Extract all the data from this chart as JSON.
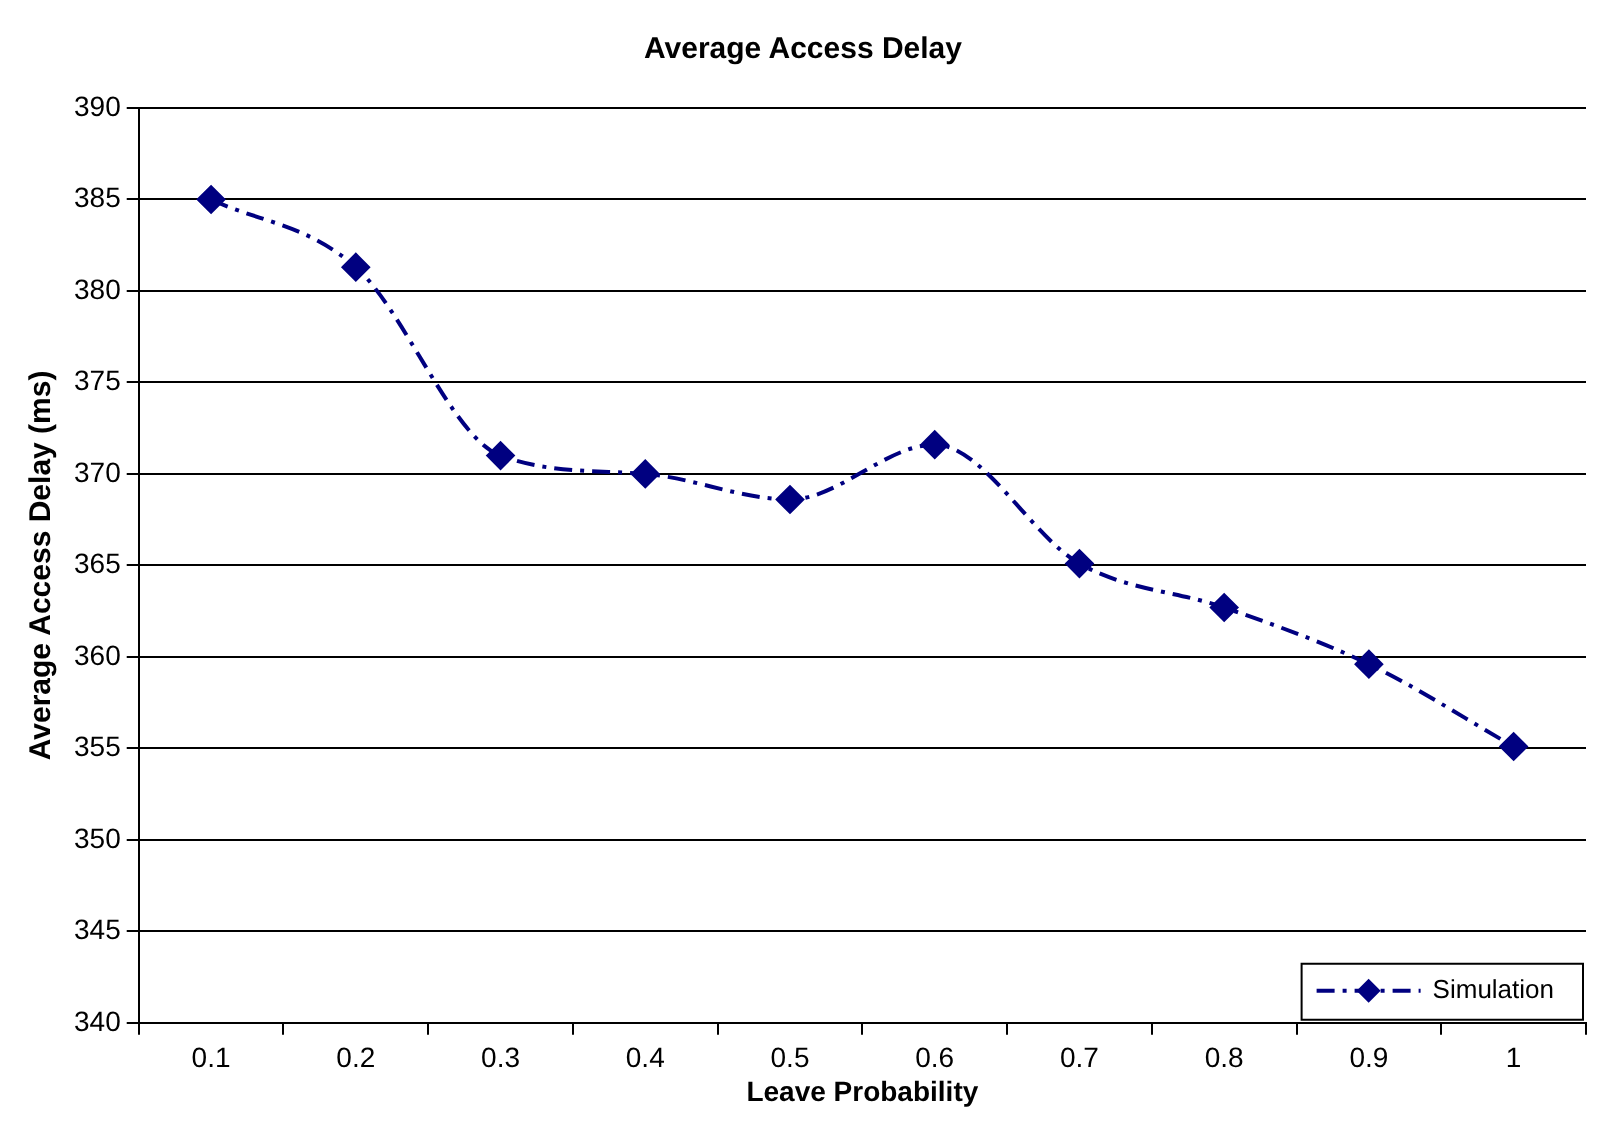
{
  "chart_data": {
    "type": "line",
    "title": "Average Access Delay",
    "xlabel": "Leave Probability",
    "ylabel": "Average Access Delay (ms)",
    "categories": [
      "0.1",
      "0.2",
      "0.3",
      "0.4",
      "0.5",
      "0.6",
      "0.7",
      "0.8",
      "0.9",
      "1"
    ],
    "series": [
      {
        "name": "Simulation",
        "color": "#000080",
        "values": [
          385,
          381.3,
          371,
          370,
          368.6,
          371.6,
          365.1,
          362.7,
          359.6,
          355.1
        ]
      }
    ],
    "ylim": [
      340,
      390
    ],
    "yticks": [
      340,
      345,
      350,
      355,
      360,
      365,
      370,
      375,
      380,
      385,
      390
    ],
    "grid": "y",
    "legend": "bottom right",
    "marker": "diamond",
    "line_style": "dashed"
  }
}
